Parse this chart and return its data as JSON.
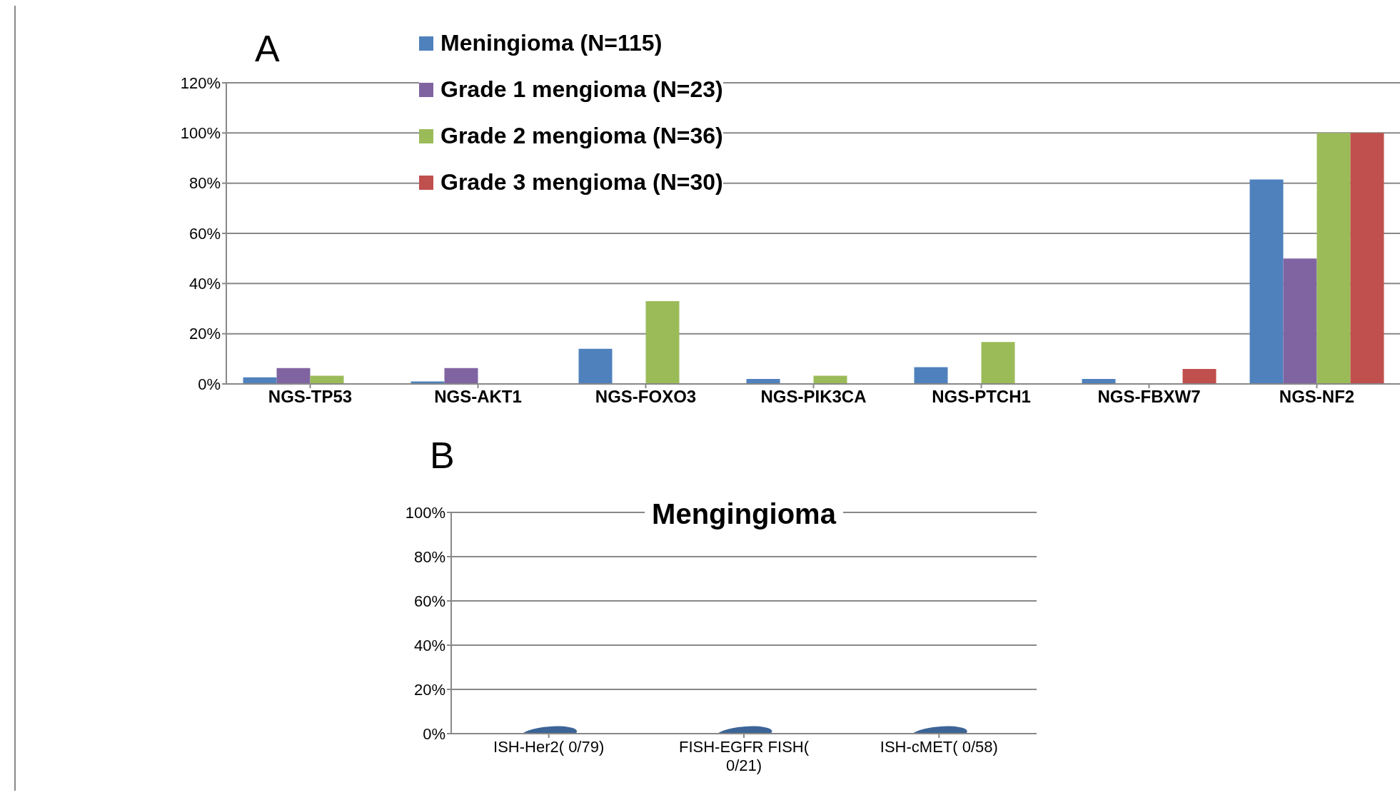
{
  "chart_data": [
    {
      "type": "bar",
      "annotations": [
        "A"
      ],
      "categories": [
        "NGS-TP53",
        "NGS-AKT1",
        "NGS-FOXO3",
        "NGS-PIK3CA",
        "NGS-PTCH1",
        "NGS-FBXW7",
        "NGS-NF2"
      ],
      "series": [
        {
          "name": "Meningioma (N=115)",
          "color": "#4f81bd",
          "values": [
            2.6,
            1,
            14,
            2,
            6.7,
            2,
            81.5
          ]
        },
        {
          "name": "Grade 1 mengioma (N=23)",
          "color": "#8064a2",
          "values": [
            6.3,
            6.3,
            0,
            0,
            0,
            0,
            50
          ]
        },
        {
          "name": "Grade 2 mengioma (N=36)",
          "color": "#9bbb59",
          "values": [
            3.3,
            0,
            33,
            3.3,
            16.7,
            0,
            100
          ]
        },
        {
          "name": "Grade 3 mengioma (N=30)",
          "color": "#c0504d",
          "values": [
            0,
            0,
            0,
            0,
            0,
            6,
            100
          ]
        }
      ],
      "ylim": [
        0,
        120
      ],
      "yticks": [
        {
          "value": 0,
          "label": "0%"
        },
        {
          "value": 20,
          "label": "20%"
        },
        {
          "value": 40,
          "label": "40%"
        },
        {
          "value": 60,
          "label": "60%"
        },
        {
          "value": 80,
          "label": "80%"
        },
        {
          "value": 100,
          "label": "100%"
        },
        {
          "value": 120,
          "label": "120%"
        }
      ],
      "grid": "y",
      "legend": "top"
    },
    {
      "type": "bar",
      "title": "Mengingioma",
      "annotations": [
        "B"
      ],
      "categories": [
        "ISH-Her2( 0/79)",
        "FISH-EGFR FISH( 0/21)",
        "ISH-cMET( 0/58)"
      ],
      "values": [
        0,
        0,
        0
      ],
      "color": "#3c6496",
      "ylim": [
        0,
        100
      ],
      "yticks": [
        {
          "value": 0,
          "label": "0%"
        },
        {
          "value": 20,
          "label": "20%"
        },
        {
          "value": 40,
          "label": "40%"
        },
        {
          "value": 60,
          "label": "60%"
        },
        {
          "value": 80,
          "label": "80%"
        },
        {
          "value": 100,
          "label": "100%"
        }
      ],
      "grid": "y"
    }
  ]
}
